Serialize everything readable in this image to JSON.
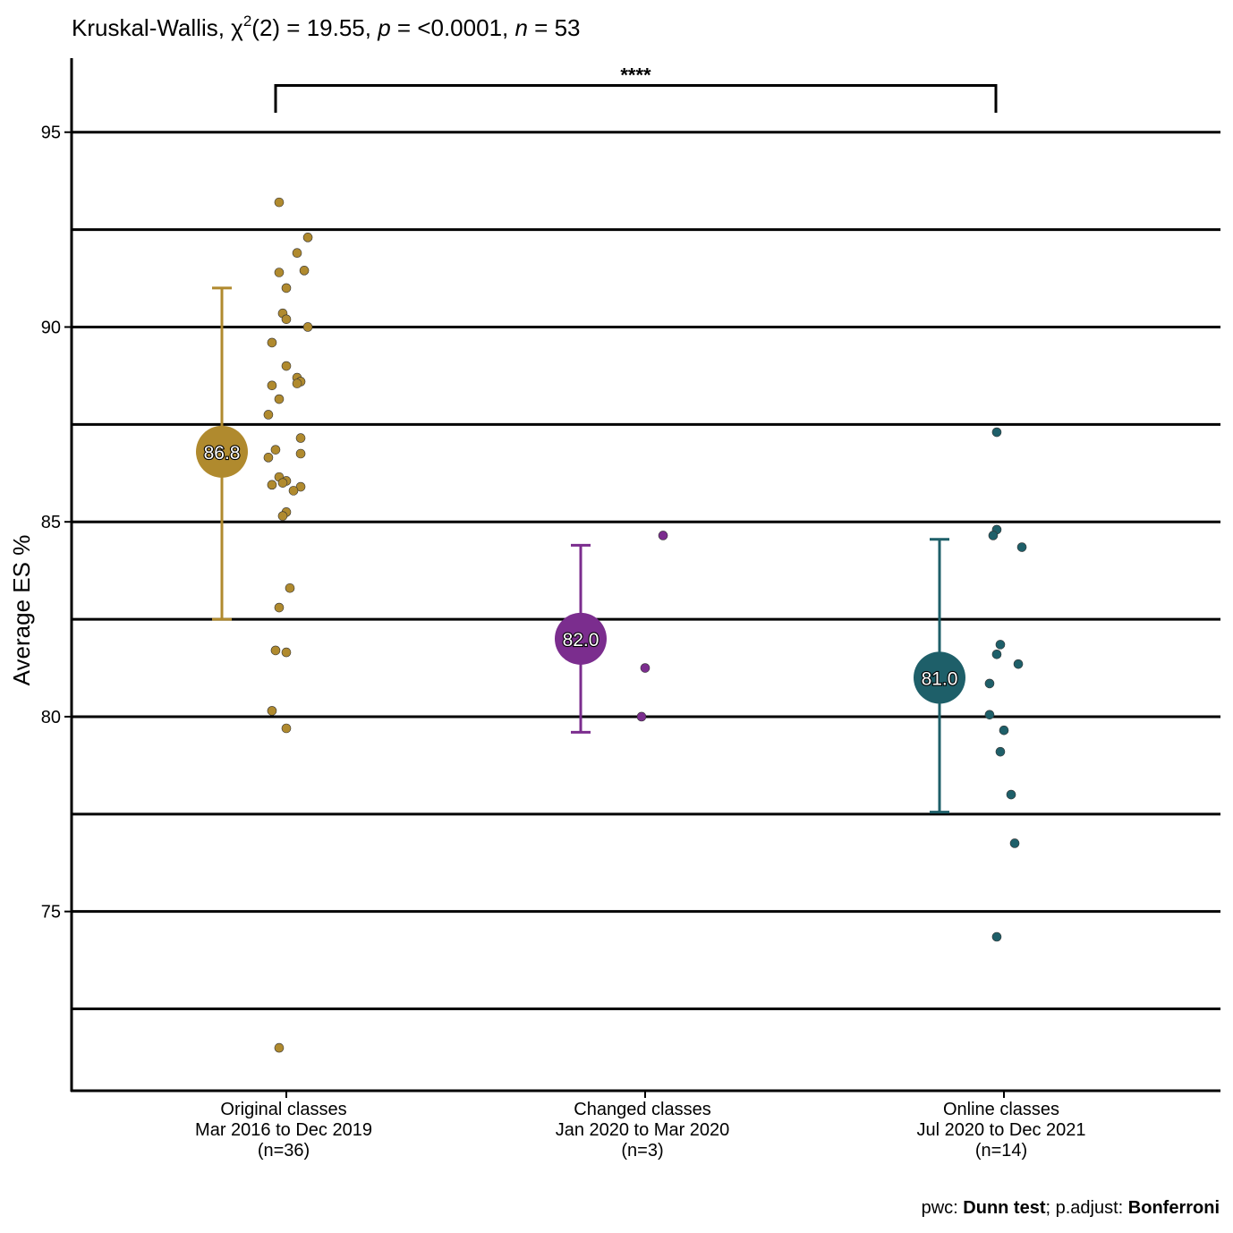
{
  "chart_data": {
    "type": "scatter",
    "title": {
      "prefix": "Kruskal-Wallis, ",
      "chi": "χ",
      "chi_sup": "2",
      "stat": "(2) = 19.55, ",
      "p_label": "p",
      "p_value": " = <0.0001, ",
      "n_label": "n",
      "n_value": " = 53"
    },
    "ylabel": "Average ES  %",
    "ylim": [
      70.4,
      96.9
    ],
    "yticks": [
      75,
      80,
      85,
      90,
      95
    ],
    "ytick_labels": [
      "75",
      "80",
      "85",
      "90",
      "95"
    ],
    "gridlines": [
      72.5,
      75,
      77.5,
      80,
      82.5,
      85,
      87.5,
      90,
      92.5,
      95
    ],
    "groups": [
      {
        "name": "Original classes",
        "label_lines": [
          "Original classes",
          "Mar 2016 to Dec 2019",
          "(n=36)"
        ],
        "color": "#B08A2E",
        "mean": 86.8,
        "mean_label": "86.8",
        "ci": [
          82.5,
          91.0
        ],
        "points": [
          93.2,
          92.3,
          91.9,
          91.45,
          91.4,
          91.0,
          90.35,
          90.2,
          90.0,
          89.6,
          89.0,
          88.7,
          88.6,
          88.5,
          88.15,
          87.75,
          87.15,
          86.85,
          86.75,
          86.65,
          86.15,
          86.05,
          85.95,
          85.9,
          85.8,
          85.25,
          85.15,
          83.3,
          82.8,
          81.7,
          81.65,
          80.15,
          79.7,
          71.5,
          86.0,
          88.55
        ],
        "jitter": [
          -0.02,
          0.06,
          0.03,
          0.05,
          -0.02,
          0.0,
          -0.01,
          0.0,
          0.06,
          -0.04,
          0.0,
          0.03,
          0.04,
          -0.04,
          -0.02,
          -0.05,
          0.04,
          -0.03,
          0.04,
          -0.05,
          -0.02,
          0.0,
          -0.04,
          0.04,
          0.02,
          0.0,
          -0.01,
          0.01,
          -0.02,
          -0.03,
          0.0,
          -0.04,
          0.0,
          -0.02,
          -0.01,
          0.03
        ]
      },
      {
        "name": "Changed classes",
        "label_lines": [
          "Changed classes",
          "Jan 2020 to Mar 2020",
          "(n=3)"
        ],
        "color": "#7B2D8E",
        "mean": 82.0,
        "mean_label": "82.0",
        "ci": [
          79.6,
          84.4
        ],
        "points": [
          84.65,
          81.25,
          80.0
        ],
        "jitter": [
          0.05,
          0.0,
          -0.01
        ]
      },
      {
        "name": "Online classes",
        "label_lines": [
          "Online classes",
          "Jul 2020 to Dec 2021",
          "(n=14)"
        ],
        "color": "#1E5F69",
        "mean": 81.0,
        "mean_label": "81.0",
        "ci": [
          77.55,
          84.55
        ],
        "points": [
          87.3,
          84.8,
          84.65,
          84.35,
          81.85,
          81.6,
          81.35,
          80.85,
          80.05,
          79.65,
          79.1,
          78.0,
          76.75,
          74.35
        ],
        "jitter": [
          -0.02,
          -0.02,
          -0.03,
          0.05,
          -0.01,
          -0.02,
          0.04,
          -0.04,
          -0.04,
          0.0,
          -0.01,
          0.02,
          0.03,
          -0.02
        ]
      }
    ],
    "significance": {
      "label": "****",
      "from": 0,
      "to": 2
    },
    "caption": {
      "pwc_prefix": "pwc: ",
      "pwc_method": "Dunn test",
      "padj_prefix": "; p.adjust: ",
      "padj_method": "Bonferroni"
    }
  }
}
